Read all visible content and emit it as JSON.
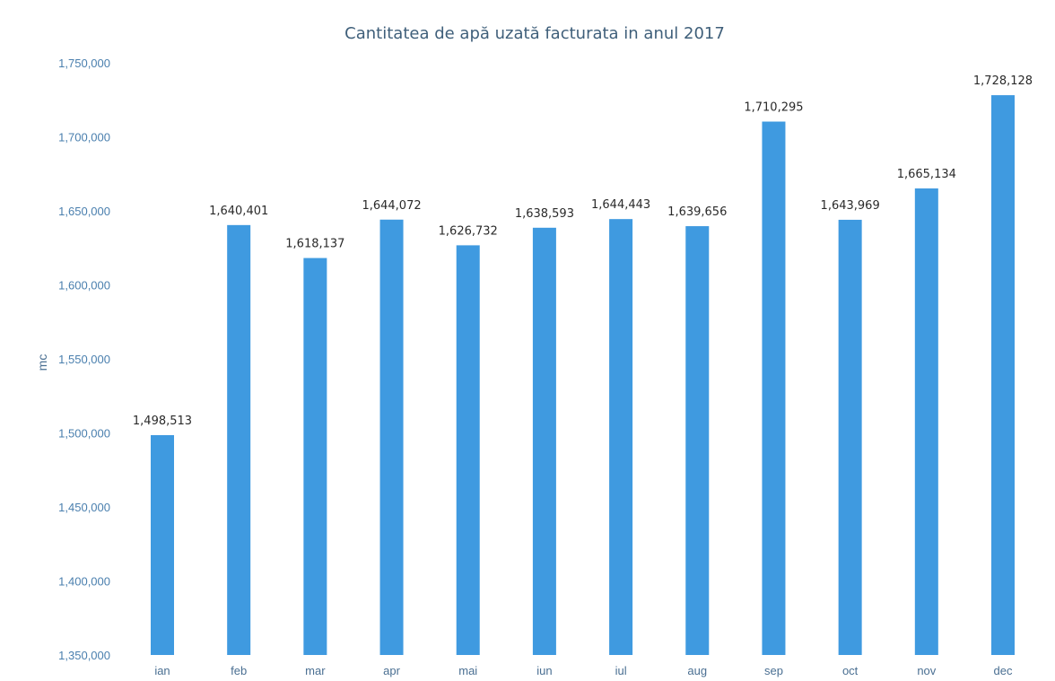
{
  "chart_data": {
    "type": "bar",
    "title": "Cantitatea de apă uzată facturata in anul 2017",
    "xlabel": "",
    "ylabel": "mc",
    "ylim": [
      1350000,
      1750000
    ],
    "yticks": [
      "1,350,000",
      "1,400,000",
      "1,450,000",
      "1,500,000",
      "1,550,000",
      "1,600,000",
      "1,650,000",
      "1,700,000",
      "1,750,000"
    ],
    "categories": [
      "ian",
      "feb",
      "mar",
      "apr",
      "mai",
      "iun",
      "iul",
      "aug",
      "sep",
      "oct",
      "nov",
      "dec"
    ],
    "values": [
      1498513,
      1640401,
      1618137,
      1644072,
      1626732,
      1638593,
      1644443,
      1639656,
      1710295,
      1643969,
      1665134,
      1728128
    ],
    "data_labels": [
      "1,498,513",
      "1,640,401",
      "1,618,137",
      "1,644,072",
      "1,626,732",
      "1,638,593",
      "1,644,443",
      "1,639,656",
      "1,710,295",
      "1,643,969",
      "1,665,134",
      "1,728,128"
    ],
    "bar_color": "#3f9ae0",
    "grid": false,
    "legend": "none"
  }
}
